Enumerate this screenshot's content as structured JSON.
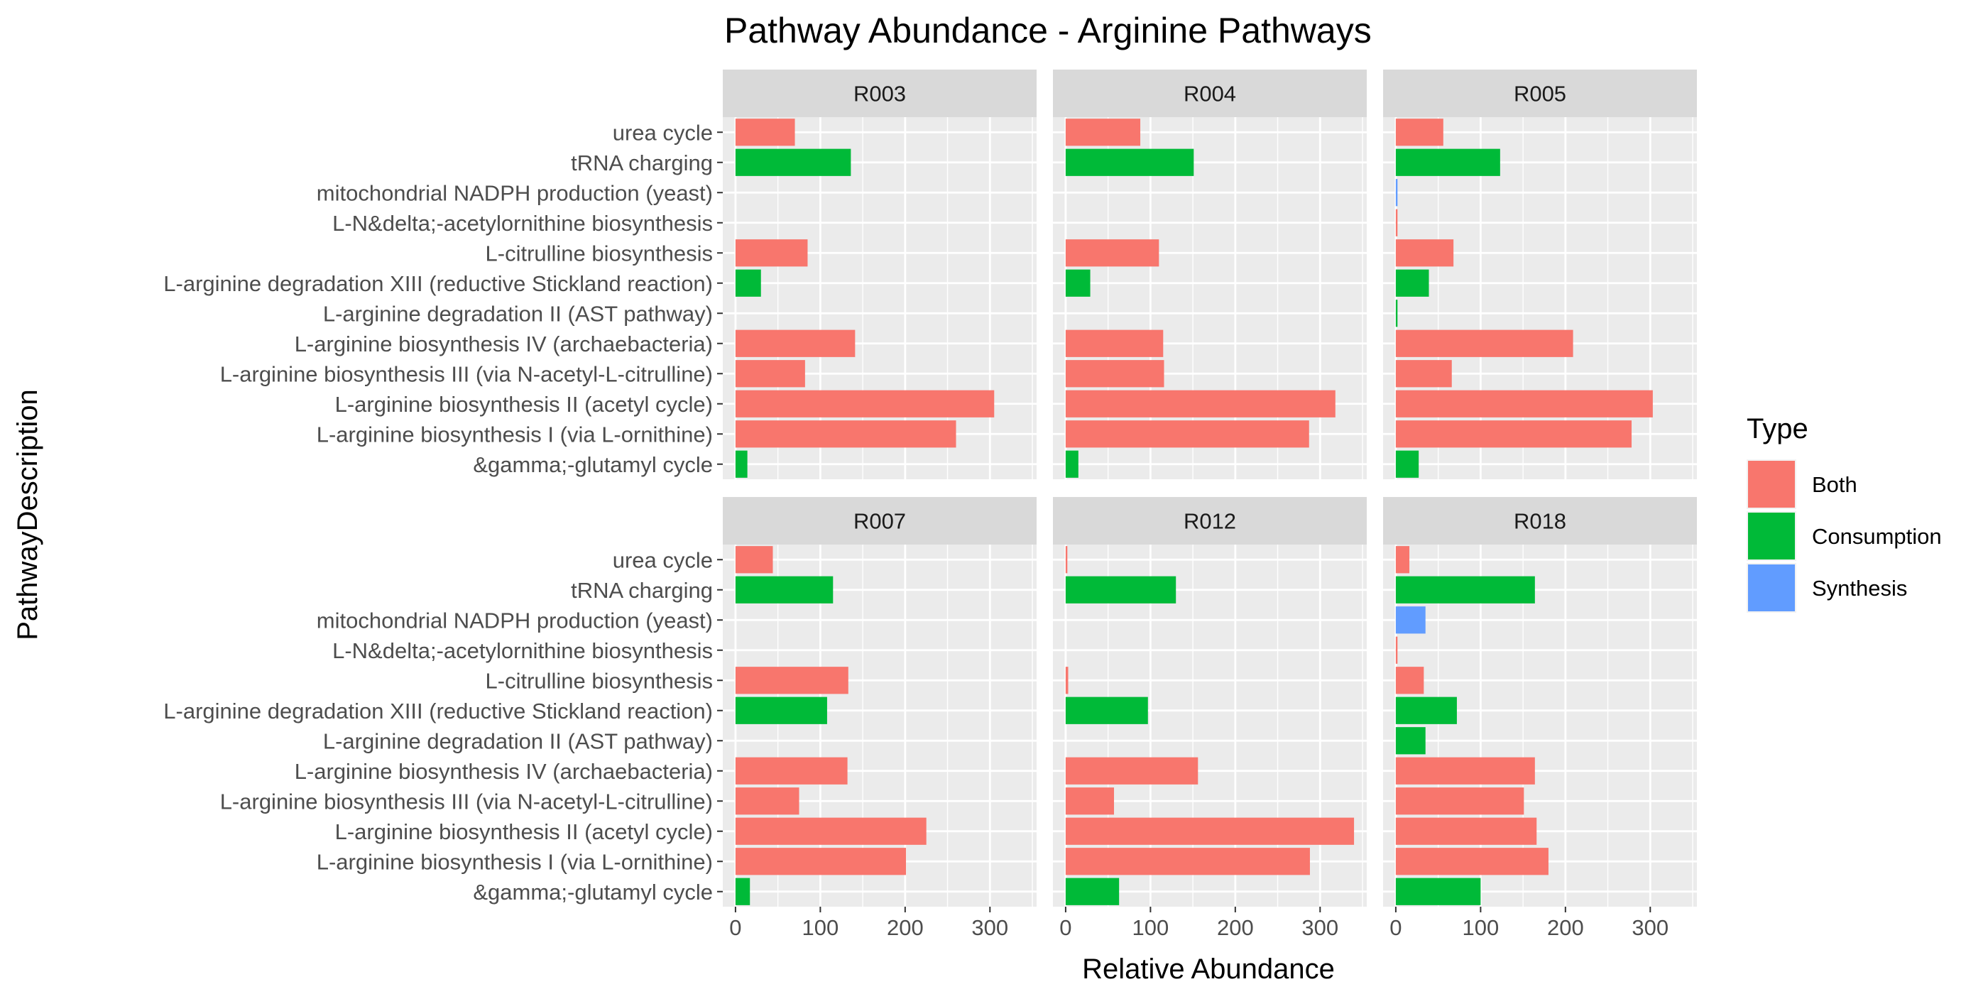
{
  "chart_data": {
    "type": "bar",
    "orientation": "horizontal",
    "title": "Pathway Abundance - Arginine Pathways",
    "xlabel": "Relative Abundance",
    "ylabel": "PathwayDescription",
    "xlim": [
      -15,
      355
    ],
    "xticks": [
      0,
      100,
      200,
      300
    ],
    "grid": true,
    "facet_layout": [
      2,
      3
    ],
    "categories": [
      "urea cycle",
      "tRNA charging",
      "mitochondrial NADPH production (yeast)",
      "L-N&delta;-acetylornithine biosynthesis",
      "L-citrulline biosynthesis",
      "L-arginine degradation XIII (reductive Stickland reaction)",
      "L-arginine degradation II (AST pathway)",
      "L-arginine biosynthesis IV (archaebacteria)",
      "L-arginine biosynthesis III (via N-acetyl-L-citrulline)",
      "L-arginine biosynthesis II (acetyl cycle)",
      "L-arginine biosynthesis I (via L-ornithine)",
      "&gamma;-glutamyl cycle"
    ],
    "category_types": [
      "Both",
      "Consumption",
      "Synthesis",
      "Both",
      "Both",
      "Consumption",
      "Consumption",
      "Both",
      "Both",
      "Both",
      "Both",
      "Consumption"
    ],
    "legend": {
      "title": "Type",
      "position": "right",
      "entries": [
        {
          "label": "Both",
          "color": "#F8766D"
        },
        {
          "label": "Consumption",
          "color": "#00BA38"
        },
        {
          "label": "Synthesis",
          "color": "#619CFF"
        }
      ]
    },
    "facets": [
      {
        "name": "R003",
        "values": [
          70,
          136,
          0,
          0,
          85,
          30,
          0,
          141,
          82,
          305,
          260,
          14
        ]
      },
      {
        "name": "R004",
        "values": [
          88,
          151,
          0,
          0,
          110,
          29,
          0,
          115,
          116,
          318,
          287,
          15
        ]
      },
      {
        "name": "R005",
        "values": [
          56,
          123,
          2,
          2,
          68,
          39,
          2,
          209,
          66,
          303,
          278,
          27
        ]
      },
      {
        "name": "R007",
        "values": [
          44,
          115,
          0,
          0,
          133,
          108,
          0,
          132,
          75,
          225,
          201,
          17
        ]
      },
      {
        "name": "R012",
        "values": [
          2,
          130,
          0,
          0,
          3,
          97,
          0,
          156,
          57,
          340,
          288,
          63
        ]
      },
      {
        "name": "R018",
        "values": [
          16,
          164,
          35,
          2,
          33,
          72,
          35,
          164,
          151,
          166,
          180,
          100
        ]
      }
    ]
  }
}
